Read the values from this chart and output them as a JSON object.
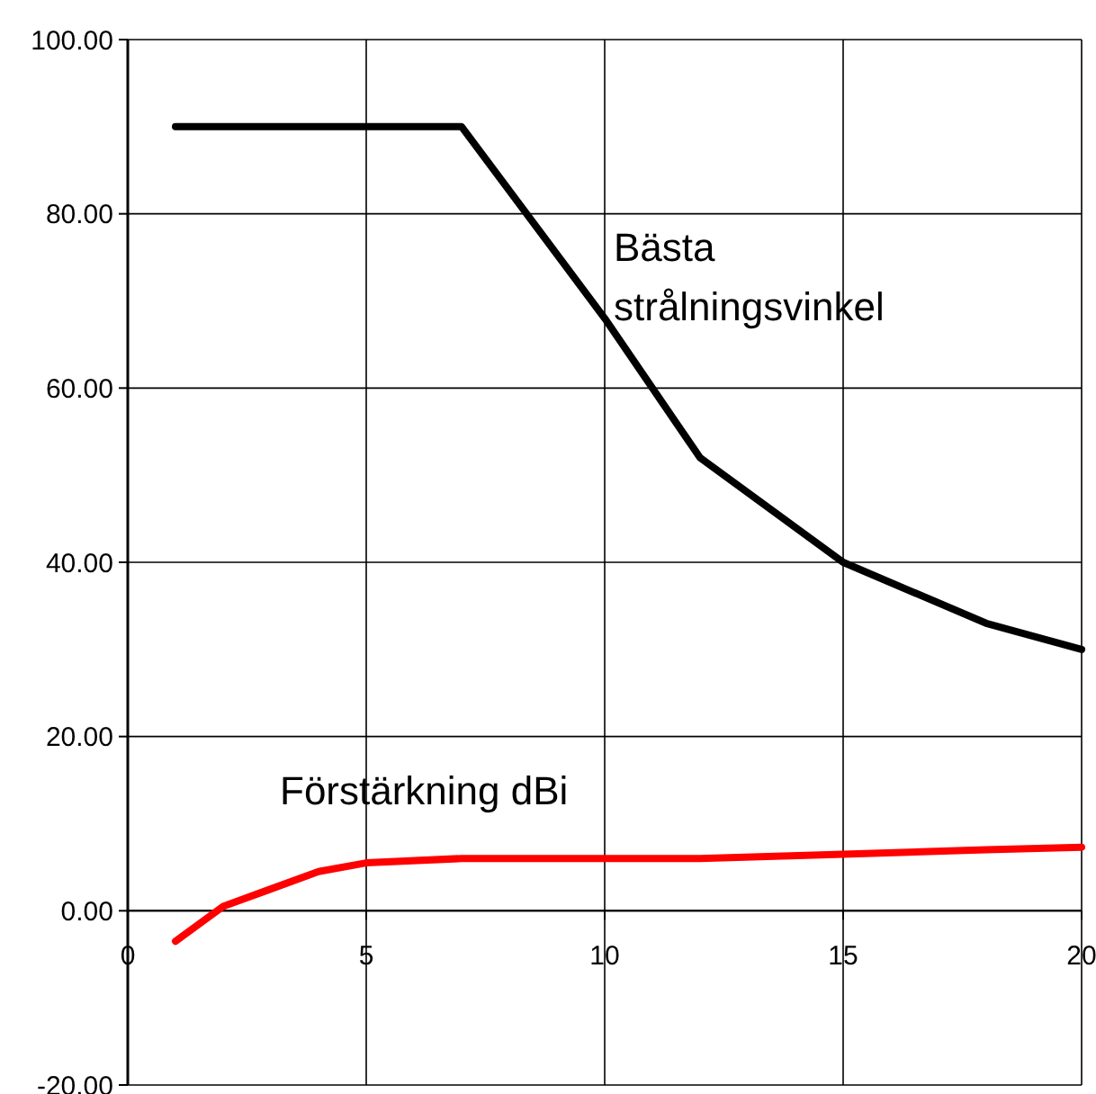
{
  "chart_data": {
    "type": "line",
    "xlim": [
      0,
      20
    ],
    "ylim": [
      -20,
      100
    ],
    "xticks": [
      0,
      5,
      10,
      15,
      20
    ],
    "yticks": [
      {
        "value": -20,
        "label": "-20.00"
      },
      {
        "value": 0,
        "label": "0.00"
      },
      {
        "value": 20,
        "label": "20.00"
      },
      {
        "value": 40,
        "label": "40.00"
      },
      {
        "value": 60,
        "label": "60.00"
      },
      {
        "value": 80,
        "label": "80.00"
      },
      {
        "value": 100,
        "label": "100.00"
      }
    ],
    "grid": true,
    "marker": "none",
    "line_style": "solid",
    "series": [
      {
        "name": "Bästa\nstrålningsvinkel",
        "color": "#000000",
        "x": [
          1,
          2,
          4,
          7,
          10,
          12,
          15,
          18,
          20
        ],
        "values": [
          90,
          90,
          90,
          90,
          68,
          52,
          40,
          33,
          30
        ]
      },
      {
        "name": "Förstärkning dBi",
        "color": "#ff0000",
        "x": [
          1,
          2,
          3,
          4,
          5,
          7,
          10,
          12,
          15,
          18,
          20
        ],
        "values": [
          -3.5,
          0.5,
          2.5,
          4.5,
          5.5,
          6,
          6,
          6,
          6.5,
          7,
          7.3
        ]
      }
    ]
  }
}
